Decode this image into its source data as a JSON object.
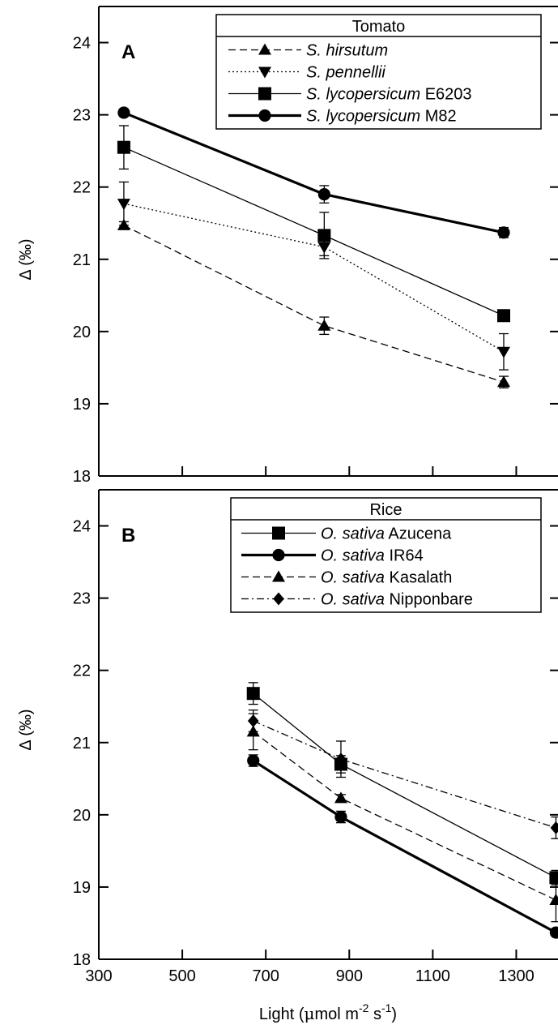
{
  "chart_data": [
    {
      "panel": "A",
      "type": "line",
      "legend_title": "Tomato",
      "legend_position": "top-right",
      "ylabel": "Δ (‰)",
      "ylim": [
        18,
        24.5
      ],
      "yticks": [
        18,
        19,
        20,
        21,
        22,
        23,
        24
      ],
      "xlim": [
        300,
        1400
      ],
      "xticks": [
        300,
        500,
        700,
        900,
        1100,
        1300
      ],
      "grid": false,
      "series": [
        {
          "name": "S. hirsutum",
          "name_italic": "S. hirsutum",
          "name_plain": "",
          "marker": "triangle-up",
          "dash": "dashed",
          "width": 1.3,
          "x": [
            360,
            840,
            1270
          ],
          "y": [
            21.47,
            20.08,
            19.3
          ],
          "err": [
            0.05,
            0.12,
            0.08
          ]
        },
        {
          "name": "S. pennellii",
          "name_italic": "S. pennellii",
          "name_plain": "",
          "marker": "triangle-down",
          "dash": "dotted",
          "width": 1.3,
          "x": [
            360,
            840,
            1270
          ],
          "y": [
            21.77,
            21.17,
            19.72
          ],
          "err": [
            0.3,
            0.12,
            0.25
          ]
        },
        {
          "name": "S. lycopersicum E6203",
          "name_italic": "S. lycopersicum",
          "name_plain": " E6203",
          "marker": "square",
          "dash": "solid",
          "width": 1.3,
          "x": [
            360,
            840,
            1270
          ],
          "y": [
            22.55,
            21.33,
            20.22
          ],
          "err": [
            0.3,
            0.32,
            0.05
          ]
        },
        {
          "name": "S. lycopersicum M82",
          "name_italic": "S. lycopersicum",
          "name_plain": " M82",
          "marker": "circle",
          "dash": "solid",
          "width": 3.2,
          "x": [
            360,
            840,
            1270
          ],
          "y": [
            23.03,
            21.9,
            21.37
          ],
          "err": [
            0.05,
            0.12,
            0.07
          ]
        }
      ]
    },
    {
      "panel": "B",
      "type": "line",
      "legend_title": "Rice",
      "legend_position": "top-right",
      "ylabel": "Δ (‰)",
      "xlabel": "Light (μmol m-2 s-1)",
      "ylim": [
        18,
        24.5
      ],
      "yticks": [
        18,
        19,
        20,
        21,
        22,
        23,
        24
      ],
      "xlim": [
        300,
        1400
      ],
      "xticks": [
        300,
        500,
        700,
        900,
        1100,
        1300
      ],
      "grid": false,
      "series": [
        {
          "name": "O. sativa Azucena",
          "name_italic": "O. sativa",
          "name_plain": " Azucena",
          "marker": "square",
          "dash": "solid",
          "width": 1.3,
          "x": [
            670,
            880,
            1395
          ],
          "y": [
            21.68,
            20.7,
            19.13
          ],
          "err": [
            0.15,
            0.12,
            0.1
          ]
        },
        {
          "name": "O. sativa IR64",
          "name_italic": "O. sativa",
          "name_plain": " IR64",
          "marker": "circle",
          "dash": "solid",
          "width": 3.2,
          "x": [
            670,
            880,
            1395
          ],
          "y": [
            20.75,
            19.97,
            18.37
          ],
          "err": [
            0.08,
            0.08,
            0.05
          ]
        },
        {
          "name": "O. sativa Kasalath",
          "name_italic": "O. sativa",
          "name_plain": " Kasalath",
          "marker": "triangle-up",
          "dash": "dashed",
          "width": 1.3,
          "x": [
            670,
            880,
            1395
          ],
          "y": [
            21.15,
            20.23,
            18.82
          ],
          "err": [
            0.25,
            0.05,
            0.3
          ]
        },
        {
          "name": "O. sativa Nipponbare",
          "name_italic": "O. sativa",
          "name_plain": " Nipponbare",
          "marker": "diamond",
          "dash": "dashdot",
          "width": 1.3,
          "x": [
            670,
            880,
            1395
          ],
          "y": [
            21.3,
            20.77,
            19.82
          ],
          "err": [
            0.15,
            0.25,
            0.15
          ]
        }
      ]
    }
  ],
  "axis": {
    "ylabel_delta": "Δ",
    "ylabel_unit": " (‰)",
    "xlabel_prefix": "Light (",
    "xlabel_mu": "μ",
    "xlabel_mol": "mol m",
    "xlabel_exp1": "-2",
    "xlabel_mid": " s",
    "xlabel_exp2": "-1",
    "xlabel_suffix": ")"
  }
}
